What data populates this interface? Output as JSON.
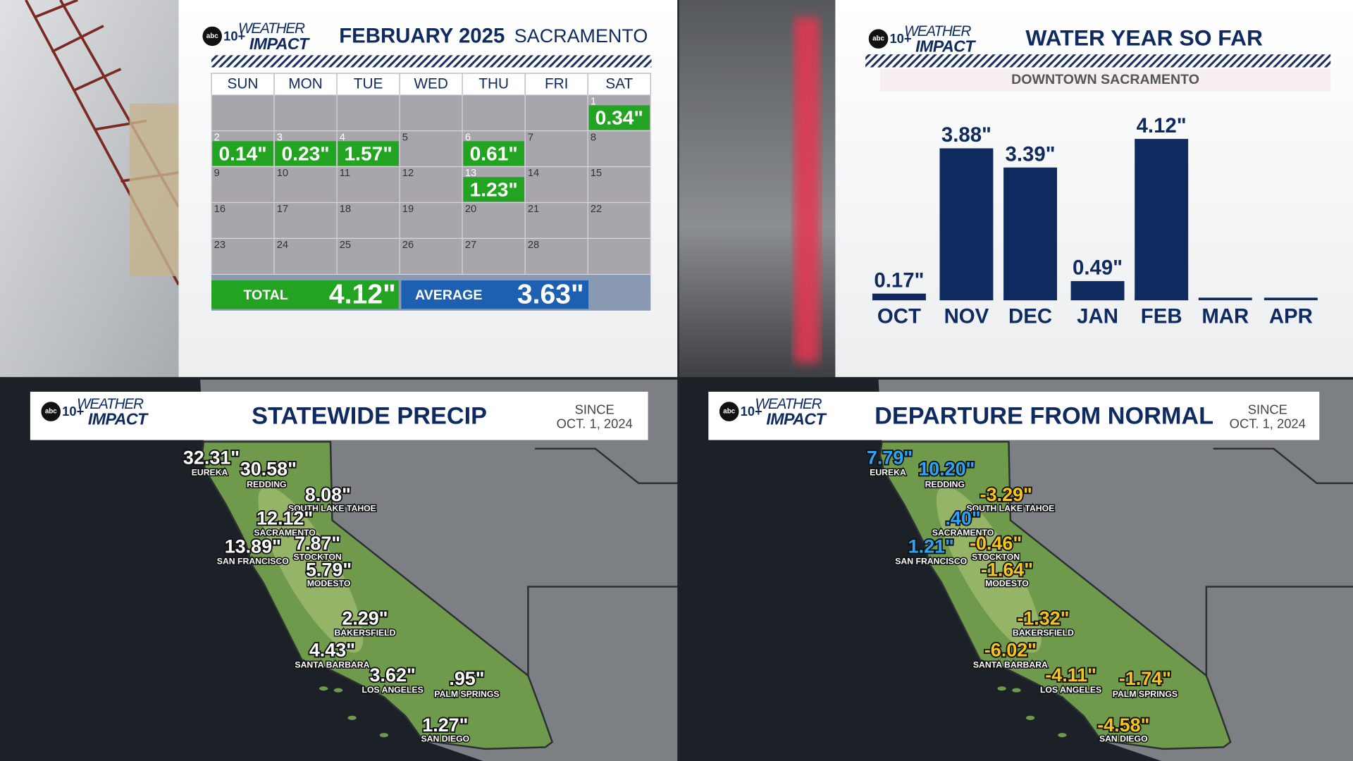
{
  "brand": {
    "network": "abc",
    "channel": "10+",
    "line1": "WEATHER",
    "line2": "IMPACT"
  },
  "calendar": {
    "title": "FEBRUARY 2025",
    "location": "SACRAMENTO",
    "weekdays": [
      "SUN",
      "MON",
      "TUE",
      "WED",
      "THU",
      "FRI",
      "SAT"
    ],
    "weeks": [
      [
        null,
        null,
        null,
        null,
        null,
        null,
        {
          "day": "1",
          "rain": "0.34\""
        }
      ],
      [
        {
          "day": "2",
          "rain": "0.14\""
        },
        {
          "day": "3",
          "rain": "0.23\""
        },
        {
          "day": "4",
          "rain": "1.57\""
        },
        {
          "day": "5"
        },
        {
          "day": "6",
          "rain": "0.61\""
        },
        {
          "day": "7"
        },
        {
          "day": "8"
        }
      ],
      [
        {
          "day": "9"
        },
        {
          "day": "10"
        },
        {
          "day": "11"
        },
        {
          "day": "12"
        },
        {
          "day": "13",
          "rain": "1.23\""
        },
        {
          "day": "14"
        },
        {
          "day": "15"
        }
      ],
      [
        {
          "day": "16"
        },
        {
          "day": "17"
        },
        {
          "day": "18"
        },
        {
          "day": "19"
        },
        {
          "day": "20"
        },
        {
          "day": "21"
        },
        {
          "day": "22"
        }
      ],
      [
        {
          "day": "23"
        },
        {
          "day": "24"
        },
        {
          "day": "25"
        },
        {
          "day": "26"
        },
        {
          "day": "27"
        },
        {
          "day": "28"
        },
        null
      ]
    ],
    "total": {
      "label": "TOTAL",
      "value": "4.12\""
    },
    "average": {
      "label": "AVERAGE",
      "value": "3.63\""
    }
  },
  "chart_data": {
    "type": "bar",
    "title": "WATER YEAR SO FAR",
    "subtitle": "DOWNTOWN SACRAMENTO",
    "categories": [
      "OCT",
      "NOV",
      "DEC",
      "JAN",
      "FEB",
      "MAR",
      "APR"
    ],
    "values": [
      0.17,
      3.88,
      3.39,
      0.49,
      4.12,
      null,
      null
    ],
    "value_labels": [
      "0.17\"",
      "3.88\"",
      "3.39\"",
      "0.49\"",
      "4.12\"",
      null,
      null
    ],
    "color": "#0f2a5e"
  },
  "maps": [
    {
      "title": "STATEWIDE PRECIP",
      "since": "SINCE",
      "date": "OCT. 1, 2024",
      "cities": [
        {
          "name": "EUREKA",
          "value": "32.31\""
        },
        {
          "name": "REDDING",
          "value": "30.58\""
        },
        {
          "name": "SOUTH LAKE TAHOE",
          "value": "8.08\""
        },
        {
          "name": "SACRAMENTO",
          "value": "12.12\""
        },
        {
          "name": "SAN FRANCISCO",
          "value": "13.89\""
        },
        {
          "name": "STOCKTON",
          "value": "7.87\""
        },
        {
          "name": "MODESTO",
          "value": "5.79\""
        },
        {
          "name": "BAKERSFIELD",
          "value": "2.29\""
        },
        {
          "name": "SANTA BARBARA",
          "value": "4.43\""
        },
        {
          "name": "LOS ANGELES",
          "value": "3.62\""
        },
        {
          "name": "PALM SPRINGS",
          "value": ".95\""
        },
        {
          "name": "SAN DIEGO",
          "value": "1.27\""
        }
      ]
    },
    {
      "title": "DEPARTURE FROM NORMAL",
      "since": "SINCE",
      "date": "OCT. 1, 2024",
      "cities": [
        {
          "name": "EUREKA",
          "value": "7.79\""
        },
        {
          "name": "REDDING",
          "value": "10.20\""
        },
        {
          "name": "SOUTH LAKE TAHOE",
          "value": "-3.29\""
        },
        {
          "name": "SACRAMENTO",
          "value": ".40\""
        },
        {
          "name": "SAN FRANCISCO",
          "value": "1.21\""
        },
        {
          "name": "STOCKTON",
          "value": "-0.46\""
        },
        {
          "name": "MODESTO",
          "value": "-1.64\""
        },
        {
          "name": "BAKERSFIELD",
          "value": "-1.32\""
        },
        {
          "name": "SANTA BARBARA",
          "value": "-6.02\""
        },
        {
          "name": "LOS ANGELES",
          "value": "-4.11\""
        },
        {
          "name": "PALM SPRINGS",
          "value": "-1.74\""
        },
        {
          "name": "SAN DIEGO",
          "value": "-4.58\""
        }
      ]
    }
  ]
}
